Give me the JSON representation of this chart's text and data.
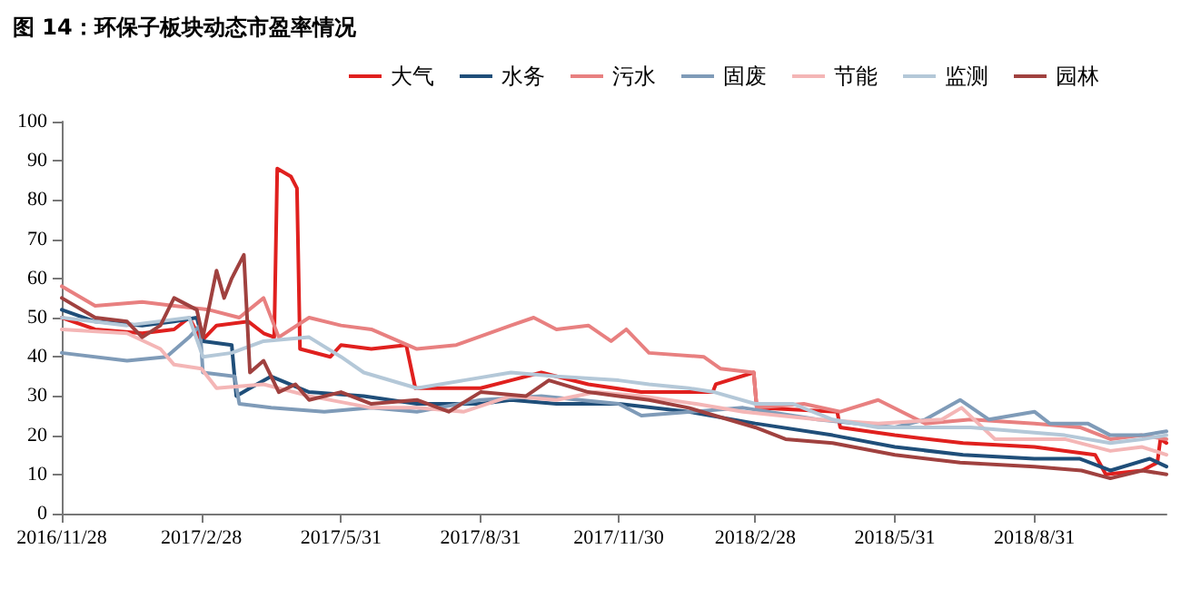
{
  "chart_data": {
    "type": "line",
    "title": "图 14：环保子板块动态市盈率情况",
    "xlim": [
      "2016-11-28",
      "2018-11-26"
    ],
    "xticks": [
      {
        "value": "2016-11-28",
        "label": "2016/11/28"
      },
      {
        "value": "2017-02-28",
        "label": "2017/2/28"
      },
      {
        "value": "2017-05-31",
        "label": "2017/5/31"
      },
      {
        "value": "2017-08-31",
        "label": "2017/8/31"
      },
      {
        "value": "2017-11-30",
        "label": "2017/11/30"
      },
      {
        "value": "2018-02-28",
        "label": "2018/2/28"
      },
      {
        "value": "2018-05-31",
        "label": "2018/5/31"
      },
      {
        "value": "2018-08-31",
        "label": "2018/8/31"
      }
    ],
    "ylim": [
      0,
      100
    ],
    "yticks": [
      0,
      10,
      20,
      30,
      40,
      50,
      60,
      70,
      80,
      90,
      100
    ],
    "grid": false,
    "legend": "top right",
    "marker": "none",
    "line_style": "solid",
    "series": [
      {
        "name": "大气",
        "color": "#e0201e",
        "x": [
          "2016-11-28",
          "2016-12-20",
          "2017-01-20",
          "2017-02-10",
          "2017-02-20",
          "2017-02-28",
          "2017-03-10",
          "2017-03-31",
          "2017-04-10",
          "2017-04-17",
          "2017-04-19",
          "2017-04-28",
          "2017-05-02",
          "2017-05-04",
          "2017-05-24",
          "2017-05-31",
          "2017-06-20",
          "2017-07-13",
          "2017-07-19",
          "2017-08-31",
          "2017-09-20",
          "2017-10-10",
          "2017-10-20",
          "2017-11-10",
          "2017-12-15",
          "2018-01-31",
          "2018-02-02",
          "2018-02-27",
          "2018-03-01",
          "2018-04-23",
          "2018-04-25",
          "2018-05-31",
          "2018-07-15",
          "2018-08-31",
          "2018-10-10",
          "2018-10-17",
          "2018-11-10",
          "2018-11-20",
          "2018-11-22",
          "2018-11-26"
        ],
        "values": [
          50,
          47,
          46,
          47,
          50,
          44,
          48,
          49,
          46,
          45,
          88,
          86,
          83,
          42,
          40,
          43,
          42,
          43,
          32,
          32,
          34,
          36,
          35,
          33,
          31,
          31,
          33,
          36,
          27,
          26,
          22,
          20,
          18,
          17,
          15,
          10,
          11,
          13,
          19,
          18
        ]
      },
      {
        "name": "水务",
        "color": "#1f4e79",
        "x": [
          "2016-11-28",
          "2016-12-20",
          "2017-01-20",
          "2017-02-10",
          "2017-02-25",
          "2017-03-01",
          "2017-03-20",
          "2017-03-23",
          "2017-04-01",
          "2017-04-15",
          "2017-05-10",
          "2017-06-15",
          "2017-07-20",
          "2017-08-31",
          "2017-09-20",
          "2017-10-20",
          "2017-11-30",
          "2018-01-15",
          "2018-02-28",
          "2018-04-20",
          "2018-05-31",
          "2018-07-15",
          "2018-08-31",
          "2018-09-30",
          "2018-10-20",
          "2018-11-15",
          "2018-11-26"
        ],
        "values": [
          52,
          49,
          48,
          49,
          50,
          44,
          43,
          30,
          32,
          35,
          31,
          30,
          28,
          28,
          29,
          28,
          28,
          26,
          23,
          20,
          17,
          15,
          14,
          14,
          11,
          14,
          12
        ]
      },
      {
        "name": "污水",
        "color": "#e88080",
        "x": [
          "2016-11-28",
          "2016-12-20",
          "2017-01-20",
          "2017-02-10",
          "2017-03-05",
          "2017-03-25",
          "2017-04-10",
          "2017-04-20",
          "2017-05-10",
          "2017-05-31",
          "2017-06-20",
          "2017-07-20",
          "2017-08-15",
          "2017-09-20",
          "2017-10-05",
          "2017-10-20",
          "2017-11-10",
          "2017-11-25",
          "2017-12-05",
          "2017-12-20",
          "2018-01-25",
          "2018-02-05",
          "2018-02-27",
          "2018-03-01",
          "2018-04-01",
          "2018-04-25",
          "2018-05-20",
          "2018-06-20",
          "2018-07-20",
          "2018-08-31",
          "2018-09-30",
          "2018-10-20",
          "2018-11-10",
          "2018-11-26"
        ],
        "values": [
          58,
          53,
          54,
          53,
          52,
          50,
          55,
          45,
          50,
          48,
          47,
          42,
          43,
          48,
          50,
          47,
          48,
          44,
          47,
          41,
          40,
          37,
          36,
          27,
          28,
          26,
          29,
          23,
          24,
          23,
          22,
          19,
          20,
          19
        ]
      },
      {
        "name": "固废",
        "color": "#7f9bb8",
        "x": [
          "2016-11-28",
          "2017-01-10",
          "2017-02-05",
          "2017-02-20",
          "2017-02-27",
          "2017-03-01",
          "2017-03-22",
          "2017-03-25",
          "2017-04-15",
          "2017-05-20",
          "2017-06-20",
          "2017-07-20",
          "2017-08-31",
          "2017-10-10",
          "2017-11-30",
          "2017-12-15",
          "2018-02-20",
          "2018-04-10",
          "2018-05-31",
          "2018-06-20",
          "2018-07-13",
          "2018-08-01",
          "2018-08-31",
          "2018-09-10",
          "2018-10-05",
          "2018-10-20",
          "2018-11-10",
          "2018-11-26"
        ],
        "values": [
          41,
          39,
          40,
          45,
          48,
          36,
          35,
          28,
          27,
          26,
          27,
          26,
          29,
          30,
          28,
          25,
          27,
          24,
          22,
          24,
          29,
          24,
          26,
          23,
          23,
          20,
          20,
          21
        ]
      },
      {
        "name": "节能",
        "color": "#f4b6b6",
        "x": [
          "2016-11-28",
          "2017-01-10",
          "2017-02-01",
          "2017-02-10",
          "2017-02-28",
          "2017-03-10",
          "2017-04-10",
          "2017-05-10",
          "2017-06-20",
          "2017-07-20",
          "2017-08-20",
          "2017-09-20",
          "2017-10-20",
          "2017-11-15",
          "2017-12-15",
          "2018-01-20",
          "2018-02-20",
          "2018-04-10",
          "2018-05-20",
          "2018-07-01",
          "2018-07-14",
          "2018-08-05",
          "2018-09-20",
          "2018-10-20",
          "2018-11-10",
          "2018-11-26"
        ],
        "values": [
          47,
          46,
          42,
          38,
          37,
          32,
          33,
          30,
          27,
          27,
          26,
          30,
          29,
          31,
          30,
          28,
          26,
          24,
          23,
          24,
          27,
          19,
          19,
          16,
          17,
          15
        ]
      },
      {
        "name": "监测",
        "color": "#b4c8d8",
        "x": [
          "2016-11-28",
          "2017-01-10",
          "2017-02-20",
          "2017-03-01",
          "2017-03-20",
          "2017-04-10",
          "2017-05-10",
          "2017-05-31",
          "2017-06-15",
          "2017-07-20",
          "2017-08-20",
          "2017-09-20",
          "2017-10-20",
          "2017-11-30",
          "2017-12-20",
          "2018-01-15",
          "2018-02-01",
          "2018-02-28",
          "2018-03-25",
          "2018-04-20",
          "2018-05-20",
          "2018-06-20",
          "2018-07-20",
          "2018-08-20",
          "2018-09-20",
          "2018-10-20",
          "2018-11-10",
          "2018-11-26"
        ],
        "values": [
          50,
          48,
          50,
          40,
          41,
          44,
          45,
          40,
          36,
          32,
          34,
          36,
          35,
          34,
          33,
          32,
          31,
          28,
          28,
          24,
          22,
          22,
          22,
          21,
          20,
          18,
          19,
          20
        ]
      },
      {
        "name": "园林",
        "color": "#a0413f",
        "x": [
          "2016-11-28",
          "2016-12-20",
          "2017-01-10",
          "2017-01-20",
          "2017-02-01",
          "2017-02-10",
          "2017-02-25",
          "2017-03-01",
          "2017-03-10",
          "2017-03-15",
          "2017-03-20",
          "2017-03-28",
          "2017-04-01",
          "2017-04-10",
          "2017-04-20",
          "2017-05-01",
          "2017-05-10",
          "2017-05-31",
          "2017-06-20",
          "2017-07-20",
          "2017-08-10",
          "2017-08-31",
          "2017-09-30",
          "2017-10-15",
          "2017-11-10",
          "2017-11-30",
          "2017-12-20",
          "2018-01-15",
          "2018-02-28",
          "2018-03-20",
          "2018-04-20",
          "2018-05-31",
          "2018-07-13",
          "2018-08-31",
          "2018-10-01",
          "2018-10-20",
          "2018-11-10",
          "2018-11-26"
        ],
        "values": [
          55,
          50,
          49,
          45,
          48,
          55,
          52,
          45,
          62,
          55,
          60,
          66,
          36,
          39,
          31,
          33,
          29,
          31,
          28,
          29,
          26,
          31,
          30,
          34,
          31,
          30,
          29,
          27,
          22,
          19,
          18,
          15,
          13,
          12,
          11,
          9,
          11,
          10
        ]
      }
    ]
  }
}
